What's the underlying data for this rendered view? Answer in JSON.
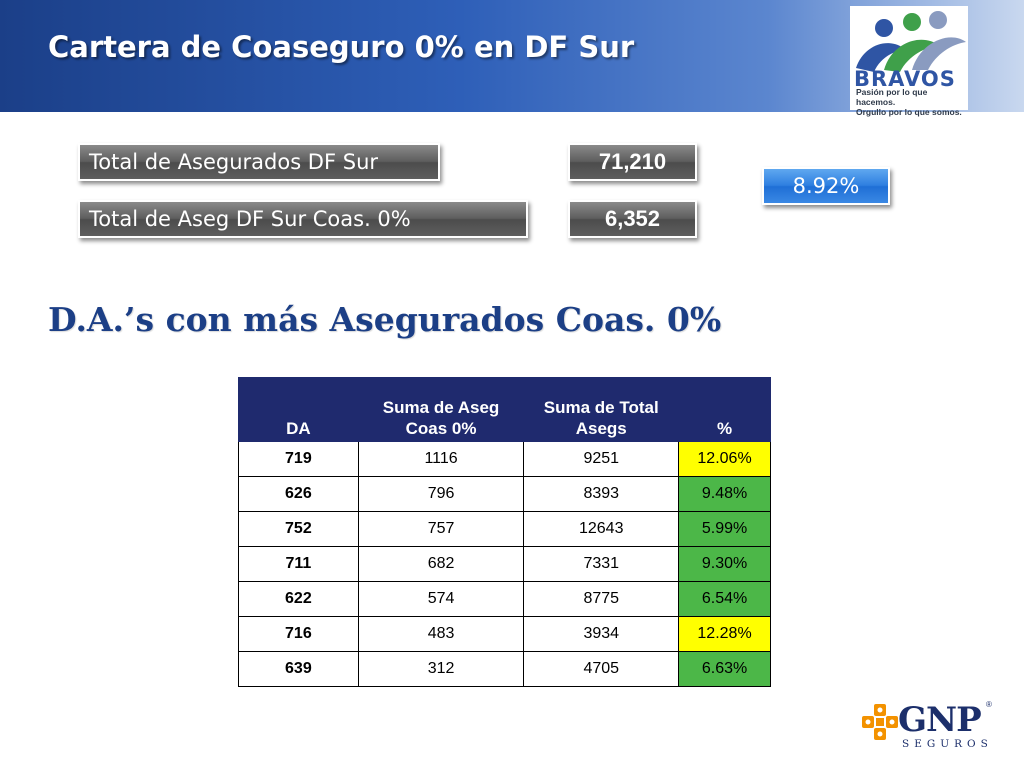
{
  "header": {
    "title": "Cartera de Coaseguro 0% en DF Sur",
    "logo_text": "BRAVOS",
    "logo_tagline_1": "Pasión por lo que hacemos.",
    "logo_tagline_2": "Orgullo por lo que somos."
  },
  "stats": {
    "total_label": "Total de Asegurados DF Sur",
    "total_value": "71,210",
    "coas_label": "Total de Aseg DF Sur Coas. 0%",
    "coas_value": "6,352",
    "percent": "8.92%"
  },
  "section_title": "D.A.’s con más Asegurados Coas. 0%",
  "table": {
    "headers": {
      "da": "DA",
      "suma_aseg_1": "Suma de Aseg",
      "suma_aseg_2": "Coas 0%",
      "suma_total_1": "Suma de Total",
      "suma_total_2": "Asegs",
      "pct": "%"
    },
    "rows": [
      {
        "da": "719",
        "coas": "1116",
        "total": "9251",
        "pct": "12.06%",
        "highlight": "yellow"
      },
      {
        "da": "626",
        "coas": "796",
        "total": "8393",
        "pct": "9.48%",
        "highlight": "green"
      },
      {
        "da": "752",
        "coas": "757",
        "total": "12643",
        "pct": "5.99%",
        "highlight": "green"
      },
      {
        "da": "711",
        "coas": "682",
        "total": "7331",
        "pct": "9.30%",
        "highlight": "green"
      },
      {
        "da": "622",
        "coas": "574",
        "total": "8775",
        "pct": "6.54%",
        "highlight": "green"
      },
      {
        "da": "716",
        "coas": "483",
        "total": "3934",
        "pct": "12.28%",
        "highlight": "yellow"
      },
      {
        "da": "639",
        "coas": "312",
        "total": "4705",
        "pct": "6.63%",
        "highlight": "green"
      }
    ]
  },
  "footer": {
    "brand": "GNP",
    "brand_sub": "SEGUROS",
    "registered": "®"
  },
  "colors": {
    "header_blue": "#1b3f88",
    "subtitle_blue": "#1c3f86",
    "table_header": "#1f2a6e",
    "highlight_yellow": "#ffff00",
    "highlight_green": "#4cb748",
    "gnp_orange": "#f39200"
  }
}
